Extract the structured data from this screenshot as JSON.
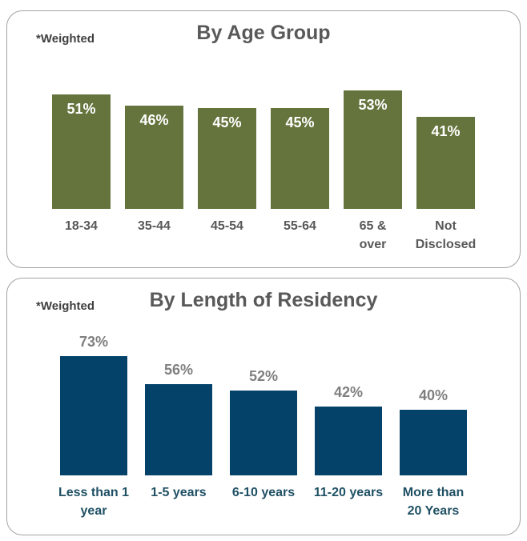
{
  "page": {
    "background_color": "#FFFFFF",
    "panel_border_color": "#A3A3A3"
  },
  "chart_data": [
    {
      "type": "bar",
      "title": "By Age Group",
      "note": "*Weighted",
      "categories": [
        "18-34",
        "35-44",
        "45-54",
        "55-64",
        "65 &\nover",
        "Not\nDisclosed"
      ],
      "values": [
        51,
        46,
        45,
        45,
        53,
        41
      ],
      "value_suffix": "%",
      "ylim": [
        0,
        60
      ],
      "axes_visible": false,
      "grid": false,
      "legend": false,
      "bar_color": "#64743C",
      "value_label_position": "inside",
      "value_label_color": "#FFFFFF",
      "category_label_color": "#595959",
      "title_color": "#595959",
      "note_color": "#404040"
    },
    {
      "type": "bar",
      "title": "By Length of Residency",
      "note": "*Weighted",
      "categories": [
        "Less than 1\nyear",
        "1-5 years",
        "6-10 years",
        "11-20 years",
        "More than\n20 Years"
      ],
      "values": [
        73,
        56,
        52,
        42,
        40
      ],
      "value_suffix": "%",
      "ylim": [
        0,
        80
      ],
      "axes_visible": false,
      "grid": false,
      "legend": false,
      "bar_color": "#05426A",
      "value_label_position": "above",
      "value_label_color": "#7F7F7F",
      "category_label_color": "#1F5064",
      "title_color": "#595959",
      "note_color": "#404040"
    }
  ]
}
